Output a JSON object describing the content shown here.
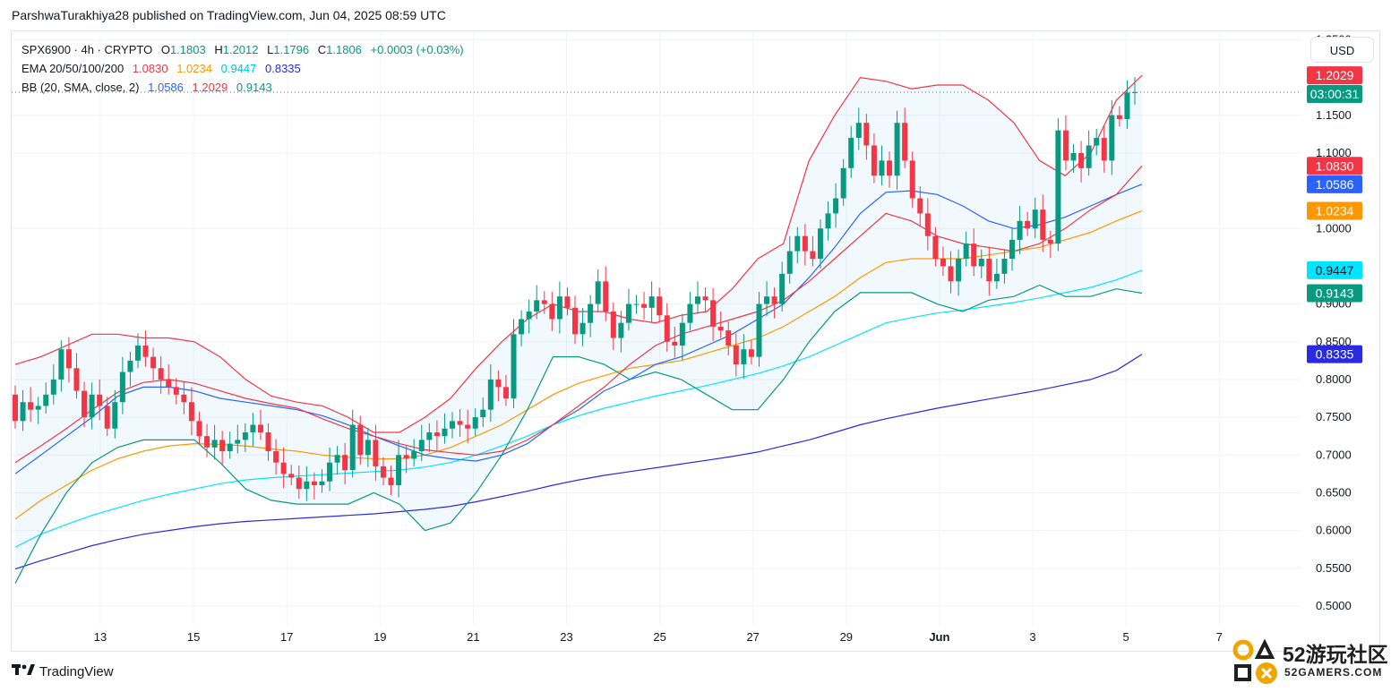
{
  "publisher": "ParshwaTurakhiya28 published on TradingView.com, Jun 04, 2025 08:59 UTC",
  "brand": "TradingView",
  "watermark": {
    "title": "52游玩社区",
    "subtitle": "52GAMERS.COM"
  },
  "currency": "USD",
  "legend": {
    "symbol": "SPX6900 · 4h · CRYPTO",
    "open_key": "O",
    "open": "1.1803",
    "high_key": "H",
    "high": "1.2012",
    "low_key": "L",
    "low": "1.1796",
    "close_key": "C",
    "close": "1.1806",
    "change": "+0.0003 (+0.03%)",
    "ema_label": "EMA 20/50/100/200",
    "ema_values": [
      "1.0830",
      "1.0234",
      "0.9447",
      "0.8335"
    ],
    "bb_label": "BB (20, SMA, close, 2)",
    "bb_values": [
      "1.0586",
      "1.2029",
      "0.9143"
    ]
  },
  "colors": {
    "up": "#089981",
    "down": "#f23645",
    "ema20": "#f23645",
    "ema50": "#ff9800",
    "ema100": "#00e5ff",
    "ema200": "#2a2ae0",
    "bb_basis": "#2962ff",
    "bb_upper": "#f23645",
    "bb_lower": "#089981",
    "bb_fill": "#2196f3"
  },
  "chart_data": {
    "type": "candlestick",
    "symbol": "SPX6900",
    "timeframe": "4h",
    "x_ticks": [
      "13",
      "15",
      "17",
      "19",
      "21",
      "23",
      "25",
      "27",
      "29",
      "Jun",
      "3",
      "5",
      "7"
    ],
    "y_ticks": [
      "1.2500",
      "1.1500",
      "1.1000",
      "1.0000",
      "0.9000",
      "0.8500",
      "0.8000",
      "0.7500",
      "0.7000",
      "0.6500",
      "0.6000",
      "0.5500",
      "0.5000"
    ],
    "ylim": [
      0.475,
      1.26
    ],
    "price_line": 1.1806,
    "countdown": "03:00:31",
    "axis_tags": [
      {
        "value": 1.2029,
        "text": "1.2029",
        "color": "#f23645",
        "text_color": "#ffffff"
      },
      {
        "value": 1.083,
        "text": "1.0830",
        "color": "#f23645",
        "text_color": "#ffffff"
      },
      {
        "value": 1.0586,
        "text": "1.0586",
        "color": "#2962ff",
        "text_color": "#ffffff"
      },
      {
        "value": 1.0234,
        "text": "1.0234",
        "color": "#ff9800",
        "text_color": "#ffffff"
      },
      {
        "value": 0.9447,
        "text": "0.9447",
        "color": "#00e5ff",
        "text_color": "#131722"
      },
      {
        "value": 0.9143,
        "text": "0.9143",
        "color": "#089981",
        "text_color": "#ffffff"
      },
      {
        "value": 0.8335,
        "text": "0.8335",
        "color": "#2a2ae0",
        "text_color": "#ffffff"
      }
    ],
    "candles_open": [
      0.78,
      0.745,
      0.77,
      0.76,
      0.765,
      0.78,
      0.8,
      0.84,
      0.815,
      0.785,
      0.75,
      0.78,
      0.765,
      0.735,
      0.77,
      0.81,
      0.825,
      0.845,
      0.83,
      0.815,
      0.8,
      0.79,
      0.78,
      0.77,
      0.745,
      0.725,
      0.71,
      0.72,
      0.705,
      0.715,
      0.72,
      0.73,
      0.74,
      0.73,
      0.705,
      0.69,
      0.675,
      0.67,
      0.655,
      0.665,
      0.66,
      0.665,
      0.69,
      0.7,
      0.68,
      0.74,
      0.7,
      0.72,
      0.685,
      0.67,
      0.66,
      0.7,
      0.695,
      0.705,
      0.72,
      0.73,
      0.725,
      0.735,
      0.745,
      0.74,
      0.735,
      0.75,
      0.76,
      0.8,
      0.79,
      0.775,
      0.86,
      0.88,
      0.89,
      0.905,
      0.9,
      0.88,
      0.91,
      0.895,
      0.86,
      0.875,
      0.9,
      0.93,
      0.89,
      0.855,
      0.875,
      0.9,
      0.9,
      0.895,
      0.91,
      0.885,
      0.85,
      0.845,
      0.875,
      0.9,
      0.91,
      0.905,
      0.87,
      0.865,
      0.845,
      0.82,
      0.84,
      0.83,
      0.9,
      0.91,
      0.9,
      0.94,
      0.97,
      0.99,
      0.97,
      0.96,
      1.0,
      1.02,
      1.04,
      1.08,
      1.12,
      1.14,
      1.11,
      1.07,
      1.09,
      1.07,
      1.14,
      1.09,
      1.04,
      1.02,
      0.99,
      0.96,
      0.95,
      0.93,
      0.96,
      0.98,
      0.95,
      0.96,
      0.93,
      0.94,
      0.96,
      0.985,
      1.01,
      1.0,
      1.025,
      0.985,
      0.98,
      1.13,
      1.09,
      1.1,
      1.08,
      1.11,
      1.12,
      1.09,
      1.15,
      1.145,
      1.18
    ],
    "candles_close": [
      0.745,
      0.77,
      0.76,
      0.765,
      0.78,
      0.8,
      0.84,
      0.815,
      0.785,
      0.75,
      0.78,
      0.765,
      0.735,
      0.77,
      0.81,
      0.825,
      0.845,
      0.83,
      0.815,
      0.8,
      0.79,
      0.78,
      0.77,
      0.745,
      0.725,
      0.71,
      0.72,
      0.705,
      0.715,
      0.72,
      0.73,
      0.74,
      0.73,
      0.705,
      0.69,
      0.675,
      0.67,
      0.655,
      0.665,
      0.66,
      0.665,
      0.69,
      0.7,
      0.68,
      0.74,
      0.7,
      0.72,
      0.685,
      0.67,
      0.66,
      0.7,
      0.695,
      0.705,
      0.72,
      0.73,
      0.725,
      0.735,
      0.745,
      0.74,
      0.735,
      0.75,
      0.76,
      0.8,
      0.79,
      0.775,
      0.86,
      0.88,
      0.89,
      0.905,
      0.9,
      0.88,
      0.91,
      0.895,
      0.86,
      0.875,
      0.9,
      0.93,
      0.89,
      0.855,
      0.875,
      0.9,
      0.9,
      0.895,
      0.91,
      0.885,
      0.85,
      0.845,
      0.875,
      0.9,
      0.91,
      0.905,
      0.87,
      0.865,
      0.845,
      0.82,
      0.84,
      0.83,
      0.9,
      0.91,
      0.9,
      0.94,
      0.97,
      0.99,
      0.97,
      0.96,
      1.0,
      1.02,
      1.04,
      1.08,
      1.12,
      1.14,
      1.11,
      1.07,
      1.09,
      1.07,
      1.14,
      1.09,
      1.04,
      1.02,
      0.99,
      0.96,
      0.95,
      0.93,
      0.96,
      0.98,
      0.95,
      0.96,
      0.93,
      0.94,
      0.96,
      0.985,
      1.01,
      1.0,
      1.025,
      0.985,
      0.98,
      1.13,
      1.09,
      1.1,
      1.08,
      1.11,
      1.12,
      1.09,
      1.15,
      1.145,
      1.18,
      1.1806
    ],
    "ema20": [
      0.69,
      0.712,
      0.735,
      0.76,
      0.783,
      0.796,
      0.8,
      0.795,
      0.785,
      0.775,
      0.768,
      0.762,
      0.748,
      0.735,
      0.725,
      0.715,
      0.707,
      0.703,
      0.7,
      0.705,
      0.72,
      0.74,
      0.765,
      0.79,
      0.82,
      0.845,
      0.86,
      0.87,
      0.88,
      0.89,
      0.905,
      0.93,
      0.96,
      0.99,
      1.02,
      1.01,
      0.99,
      0.98,
      0.975,
      0.97,
      0.98,
      1.0,
      1.025,
      1.045,
      1.083
    ],
    "ema50": [
      0.615,
      0.64,
      0.66,
      0.68,
      0.695,
      0.705,
      0.712,
      0.715,
      0.714,
      0.712,
      0.708,
      0.705,
      0.7,
      0.697,
      0.695,
      0.695,
      0.7,
      0.71,
      0.725,
      0.74,
      0.76,
      0.78,
      0.795,
      0.805,
      0.815,
      0.82,
      0.825,
      0.835,
      0.845,
      0.855,
      0.87,
      0.89,
      0.91,
      0.935,
      0.955,
      0.96,
      0.96,
      0.96,
      0.965,
      0.97,
      0.975,
      0.985,
      0.995,
      1.01,
      1.0234
    ],
    "ema100": [
      0.578,
      0.595,
      0.608,
      0.62,
      0.63,
      0.64,
      0.648,
      0.655,
      0.662,
      0.667,
      0.67,
      0.672,
      0.674,
      0.676,
      0.678,
      0.68,
      0.684,
      0.69,
      0.7,
      0.712,
      0.725,
      0.74,
      0.752,
      0.762,
      0.77,
      0.778,
      0.785,
      0.792,
      0.8,
      0.808,
      0.818,
      0.83,
      0.845,
      0.86,
      0.875,
      0.882,
      0.888,
      0.892,
      0.897,
      0.902,
      0.908,
      0.915,
      0.922,
      0.932,
      0.9447
    ],
    "ema200": [
      0.549,
      0.56,
      0.57,
      0.58,
      0.588,
      0.595,
      0.6,
      0.605,
      0.609,
      0.612,
      0.614,
      0.616,
      0.618,
      0.62,
      0.622,
      0.625,
      0.628,
      0.632,
      0.638,
      0.645,
      0.652,
      0.66,
      0.667,
      0.673,
      0.678,
      0.683,
      0.688,
      0.693,
      0.698,
      0.704,
      0.712,
      0.72,
      0.73,
      0.74,
      0.748,
      0.755,
      0.762,
      0.768,
      0.774,
      0.78,
      0.786,
      0.793,
      0.8,
      0.812,
      0.8335
    ],
    "bb_basis": [
      0.675,
      0.7,
      0.725,
      0.75,
      0.778,
      0.79,
      0.79,
      0.785,
      0.775,
      0.77,
      0.765,
      0.76,
      0.752,
      0.74,
      0.725,
      0.712,
      0.7,
      0.695,
      0.692,
      0.7,
      0.715,
      0.74,
      0.76,
      0.785,
      0.8,
      0.82,
      0.83,
      0.845,
      0.86,
      0.88,
      0.9,
      0.935,
      0.975,
      1.02,
      1.048,
      1.05,
      1.045,
      1.03,
      1.01,
      1.0,
      1.005,
      1.015,
      1.03,
      1.045,
      1.0586
    ],
    "bb_upper": [
      0.82,
      0.83,
      0.845,
      0.86,
      0.86,
      0.855,
      0.855,
      0.85,
      0.83,
      0.8,
      0.778,
      0.77,
      0.765,
      0.75,
      0.73,
      0.73,
      0.75,
      0.775,
      0.815,
      0.85,
      0.88,
      0.9,
      0.89,
      0.89,
      0.88,
      0.875,
      0.885,
      0.89,
      0.92,
      0.96,
      0.98,
      1.09,
      1.15,
      1.2,
      1.195,
      1.185,
      1.19,
      1.19,
      1.17,
      1.14,
      1.09,
      1.07,
      1.1,
      1.17,
      1.2029
    ],
    "bb_lower": [
      0.53,
      0.595,
      0.65,
      0.69,
      0.71,
      0.72,
      0.72,
      0.72,
      0.69,
      0.655,
      0.64,
      0.635,
      0.635,
      0.635,
      0.65,
      0.635,
      0.6,
      0.61,
      0.65,
      0.7,
      0.76,
      0.83,
      0.83,
      0.82,
      0.8,
      0.81,
      0.8,
      0.78,
      0.76,
      0.76,
      0.8,
      0.85,
      0.89,
      0.915,
      0.915,
      0.915,
      0.9,
      0.89,
      0.905,
      0.91,
      0.925,
      0.91,
      0.91,
      0.92,
      0.9143
    ]
  }
}
